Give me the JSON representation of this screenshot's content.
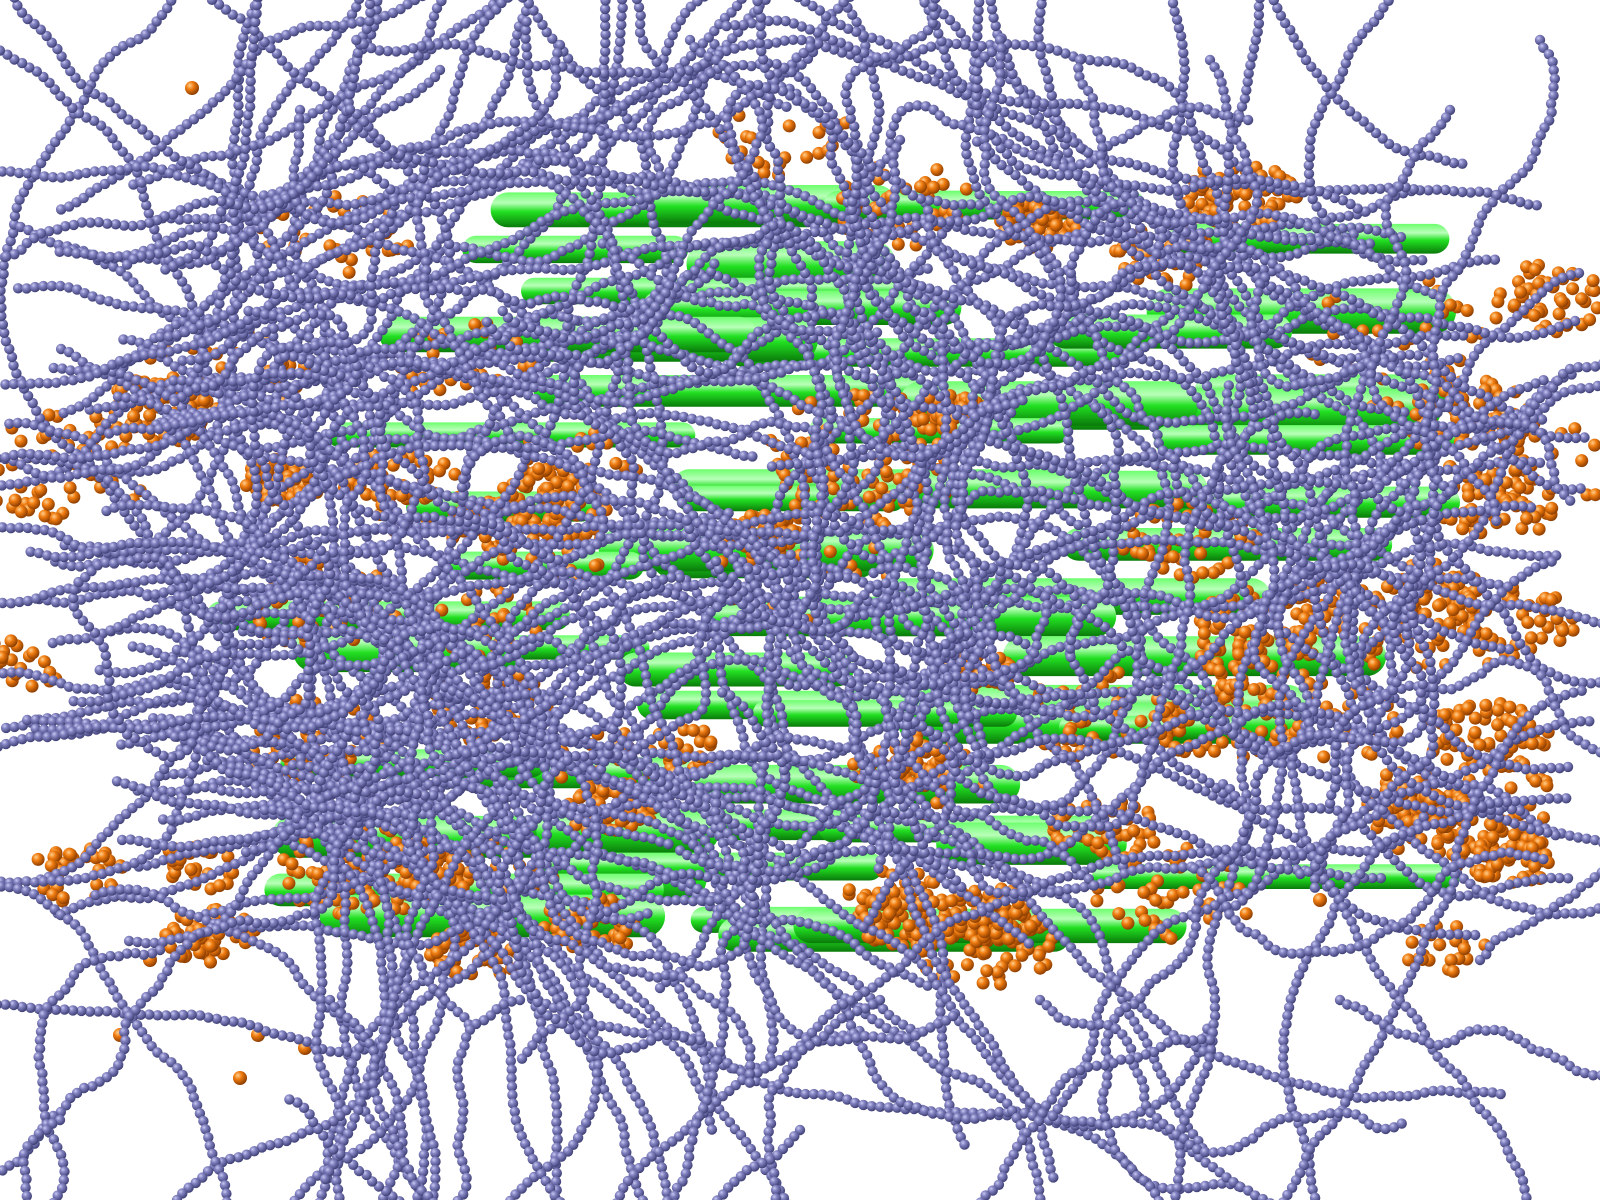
{
  "scene": {
    "description_kind": "coarse-grained molecular simulation render",
    "background_color": "#ffffff",
    "colors": {
      "polymer_chain_bead": "#7777b8",
      "polymer_chain_highlight": "#b8b8e6",
      "polymer_chain_shadow": "#3e3e74",
      "orange_bead": "#f07c10",
      "orange_bead_highlight": "#ffc070",
      "orange_bead_shadow": "#8a3c00",
      "green_rod": "#1fe01f",
      "green_rod_highlight": "#a8ffa8",
      "green_rod_shadow": "#0a8a0a"
    },
    "components": [
      {
        "name": "green-rod-layers",
        "visible": true
      },
      {
        "name": "orange-bead-clusters",
        "visible": true
      },
      {
        "name": "purple-polymer-chains",
        "visible": true
      }
    ]
  }
}
